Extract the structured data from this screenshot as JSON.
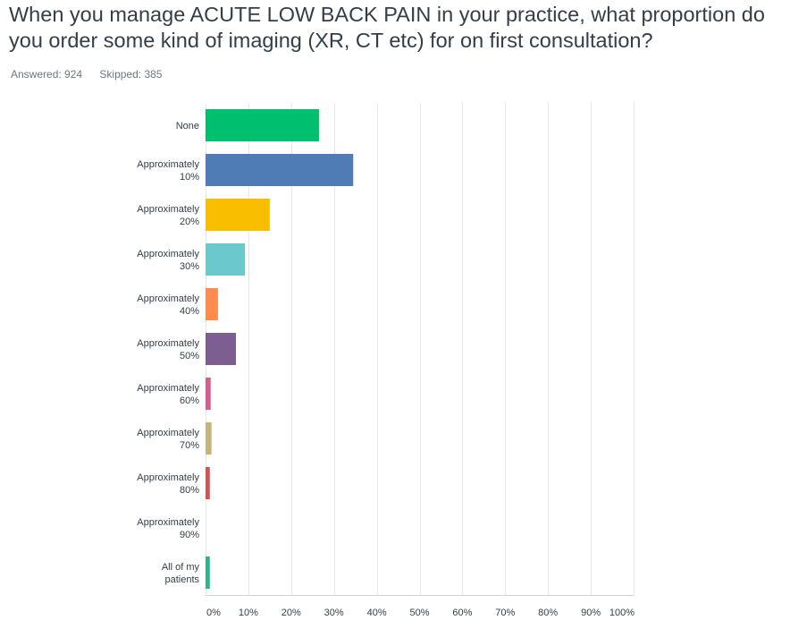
{
  "question": {
    "title": "When you manage ACUTE LOW BACK PAIN in your practice, what proportion do you order some kind of imaging (XR, CT etc) for on first consultation?",
    "answered": "Answered: 924",
    "skipped": "Skipped: 385"
  },
  "chart_data": {
    "type": "bar",
    "orientation": "horizontal",
    "categories": [
      [
        "None"
      ],
      [
        "Approximately",
        "10%"
      ],
      [
        "Approximately",
        "20%"
      ],
      [
        "Approximately",
        "30%"
      ],
      [
        "Approximately",
        "40%"
      ],
      [
        "Approximately",
        "50%"
      ],
      [
        "Approximately",
        "60%"
      ],
      [
        "Approximately",
        "70%"
      ],
      [
        "Approximately",
        "80%"
      ],
      [
        "Approximately",
        "90%"
      ],
      [
        "All of my",
        "patients"
      ]
    ],
    "values": [
      26.5,
      34.5,
      15.0,
      9.2,
      2.9,
      7.1,
      1.2,
      1.4,
      1.0,
      0.0,
      1.0
    ],
    "colors": [
      "#00bf6f",
      "#507cb6",
      "#f9be00",
      "#6bc8cd",
      "#ff8b4f",
      "#7d5e90",
      "#d25f90",
      "#c4b57d",
      "#d25353",
      "#8fa8d1",
      "#2db38a"
    ],
    "xlim": [
      0,
      100
    ],
    "ticks": [
      "0%",
      "10%",
      "20%",
      "30%",
      "40%",
      "50%",
      "60%",
      "70%",
      "80%",
      "90%",
      "100%"
    ],
    "grid": true,
    "legend": "none"
  }
}
